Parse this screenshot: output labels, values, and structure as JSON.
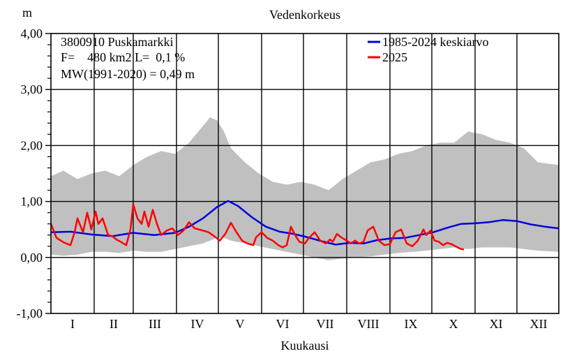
{
  "chart_data": {
    "type": "line",
    "title": "Vedenkorkeus",
    "ylabel": "m",
    "xlabel": "Kuukausi",
    "ylim": [
      -1.0,
      4.0
    ],
    "yticks": [
      "4,00",
      "3,00",
      "2,00",
      "1,00",
      "0,00",
      "-1,00"
    ],
    "ytick_values": [
      4,
      3,
      2,
      1,
      0,
      -1
    ],
    "months": [
      "I",
      "II",
      "III",
      "IV",
      "V",
      "VI",
      "VII",
      "VIII",
      "IX",
      "X",
      "XI",
      "XII"
    ],
    "grid": true,
    "legend_position": "top-right",
    "info": {
      "station": "3800910 Puskamarkki",
      "area": "F=    480 km2 L=  0,1 %",
      "mw": "MW(1991-2020) = 0,49 m"
    },
    "colors": {
      "band": "#c0c0c0",
      "mean": "#0000e0",
      "current": "#ff0000"
    },
    "series": [
      {
        "name": "1985-2024 keskiarvo",
        "x": [
          1,
          15,
          30,
          45,
          60,
          75,
          90,
          100,
          110,
          120,
          128,
          135,
          145,
          155,
          165,
          175,
          185,
          195,
          205,
          215,
          225,
          235,
          245,
          255,
          265,
          275,
          285,
          295,
          305,
          315,
          325,
          335,
          345,
          355,
          365
        ],
        "values": [
          0.45,
          0.46,
          0.41,
          0.38,
          0.44,
          0.4,
          0.44,
          0.55,
          0.7,
          0.9,
          1.01,
          0.92,
          0.72,
          0.55,
          0.46,
          0.42,
          0.36,
          0.29,
          0.23,
          0.26,
          0.25,
          0.31,
          0.34,
          0.35,
          0.4,
          0.45,
          0.53,
          0.6,
          0.61,
          0.63,
          0.67,
          0.65,
          0.59,
          0.55,
          0.52
        ]
      },
      {
        "name": "2025",
        "x": [
          1,
          5,
          10,
          15,
          18,
          20,
          24,
          27,
          30,
          33,
          35,
          38,
          40,
          42,
          45,
          48,
          51,
          55,
          58,
          60,
          63,
          66,
          68,
          71,
          74,
          77,
          80,
          84,
          88,
          92,
          96,
          100,
          104,
          110,
          114,
          118,
          122,
          126,
          130,
          134,
          138,
          142,
          146,
          148,
          152,
          156,
          160,
          164,
          167,
          170,
          173,
          176,
          179,
          183,
          186,
          190,
          194,
          198,
          201,
          203,
          206,
          209,
          213,
          216,
          219,
          222,
          225,
          228,
          232,
          236,
          240,
          244,
          248,
          252,
          256,
          260,
          264,
          268,
          270,
          273,
          276,
          279,
          282,
          285,
          288,
          291,
          294,
          297
        ],
        "values": [
          0.6,
          0.35,
          0.27,
          0.22,
          0.45,
          0.7,
          0.45,
          0.8,
          0.5,
          0.82,
          0.6,
          0.7,
          0.55,
          0.4,
          0.38,
          0.32,
          0.28,
          0.22,
          0.5,
          0.95,
          0.7,
          0.6,
          0.82,
          0.55,
          0.85,
          0.6,
          0.4,
          0.48,
          0.52,
          0.4,
          0.48,
          0.63,
          0.52,
          0.48,
          0.45,
          0.38,
          0.3,
          0.42,
          0.62,
          0.45,
          0.3,
          0.25,
          0.22,
          0.36,
          0.45,
          0.35,
          0.3,
          0.22,
          0.18,
          0.22,
          0.55,
          0.4,
          0.28,
          0.25,
          0.35,
          0.45,
          0.3,
          0.25,
          0.32,
          0.28,
          0.42,
          0.36,
          0.3,
          0.25,
          0.3,
          0.25,
          0.28,
          0.48,
          0.55,
          0.3,
          0.22,
          0.24,
          0.45,
          0.5,
          0.25,
          0.2,
          0.3,
          0.5,
          0.4,
          0.48,
          0.3,
          0.28,
          0.22,
          0.26,
          0.24,
          0.2,
          0.16,
          0.14
        ]
      }
    ],
    "range_band": {
      "x": [
        1,
        10,
        20,
        30,
        40,
        50,
        60,
        70,
        80,
        90,
        100,
        110,
        115,
        120,
        125,
        130,
        140,
        150,
        160,
        170,
        180,
        190,
        200,
        210,
        220,
        230,
        240,
        250,
        260,
        270,
        280,
        290,
        300,
        310,
        320,
        330,
        340,
        350,
        365
      ],
      "low": [
        0.05,
        0.03,
        0.05,
        0.1,
        0.1,
        0.08,
        0.12,
        0.1,
        0.1,
        0.15,
        0.2,
        0.25,
        0.3,
        0.35,
        0.35,
        0.3,
        0.25,
        0.2,
        0.15,
        0.1,
        0.05,
        0.0,
        -0.05,
        -0.02,
        0.0,
        0.02,
        0.05,
        0.08,
        0.1,
        0.12,
        0.15,
        0.18,
        0.15,
        0.18,
        0.18,
        0.18,
        0.15,
        0.12,
        0.1
      ],
      "high": [
        1.45,
        1.55,
        1.4,
        1.5,
        1.55,
        1.45,
        1.65,
        1.8,
        1.9,
        1.85,
        2.05,
        2.35,
        2.5,
        2.45,
        2.25,
        1.95,
        1.7,
        1.5,
        1.35,
        1.3,
        1.35,
        1.3,
        1.2,
        1.4,
        1.55,
        1.7,
        1.75,
        1.85,
        1.9,
        2.0,
        2.05,
        2.05,
        2.25,
        2.2,
        2.1,
        2.05,
        1.95,
        1.7,
        1.65
      ]
    }
  }
}
